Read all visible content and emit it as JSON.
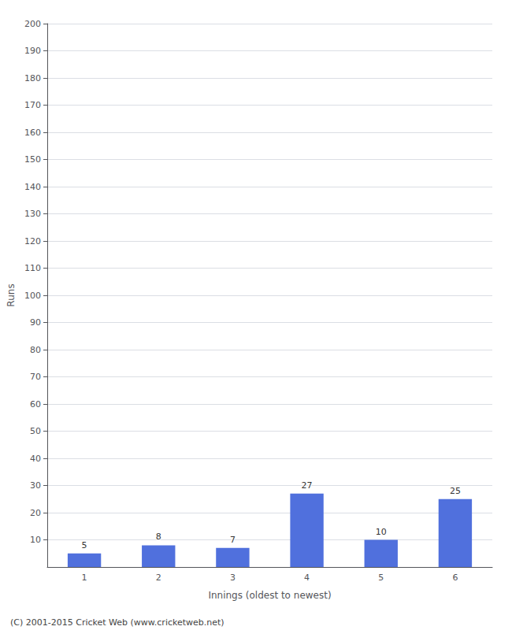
{
  "chart_data": {
    "type": "bar",
    "categories": [
      "1",
      "2",
      "3",
      "4",
      "5",
      "6"
    ],
    "values": [
      5,
      8,
      7,
      27,
      10,
      25
    ],
    "xlabel": "Innings (oldest to newest)",
    "ylabel": "Runs",
    "ylim": [
      0,
      200
    ],
    "yticks": [
      10,
      20,
      30,
      40,
      50,
      60,
      70,
      80,
      90,
      100,
      110,
      120,
      130,
      140,
      150,
      160,
      170,
      180,
      190,
      200
    ],
    "grid": true,
    "data_labels": true,
    "annotations": [
      "(C) 2001-2015 Cricket Web (www.cricketweb.net)"
    ]
  }
}
